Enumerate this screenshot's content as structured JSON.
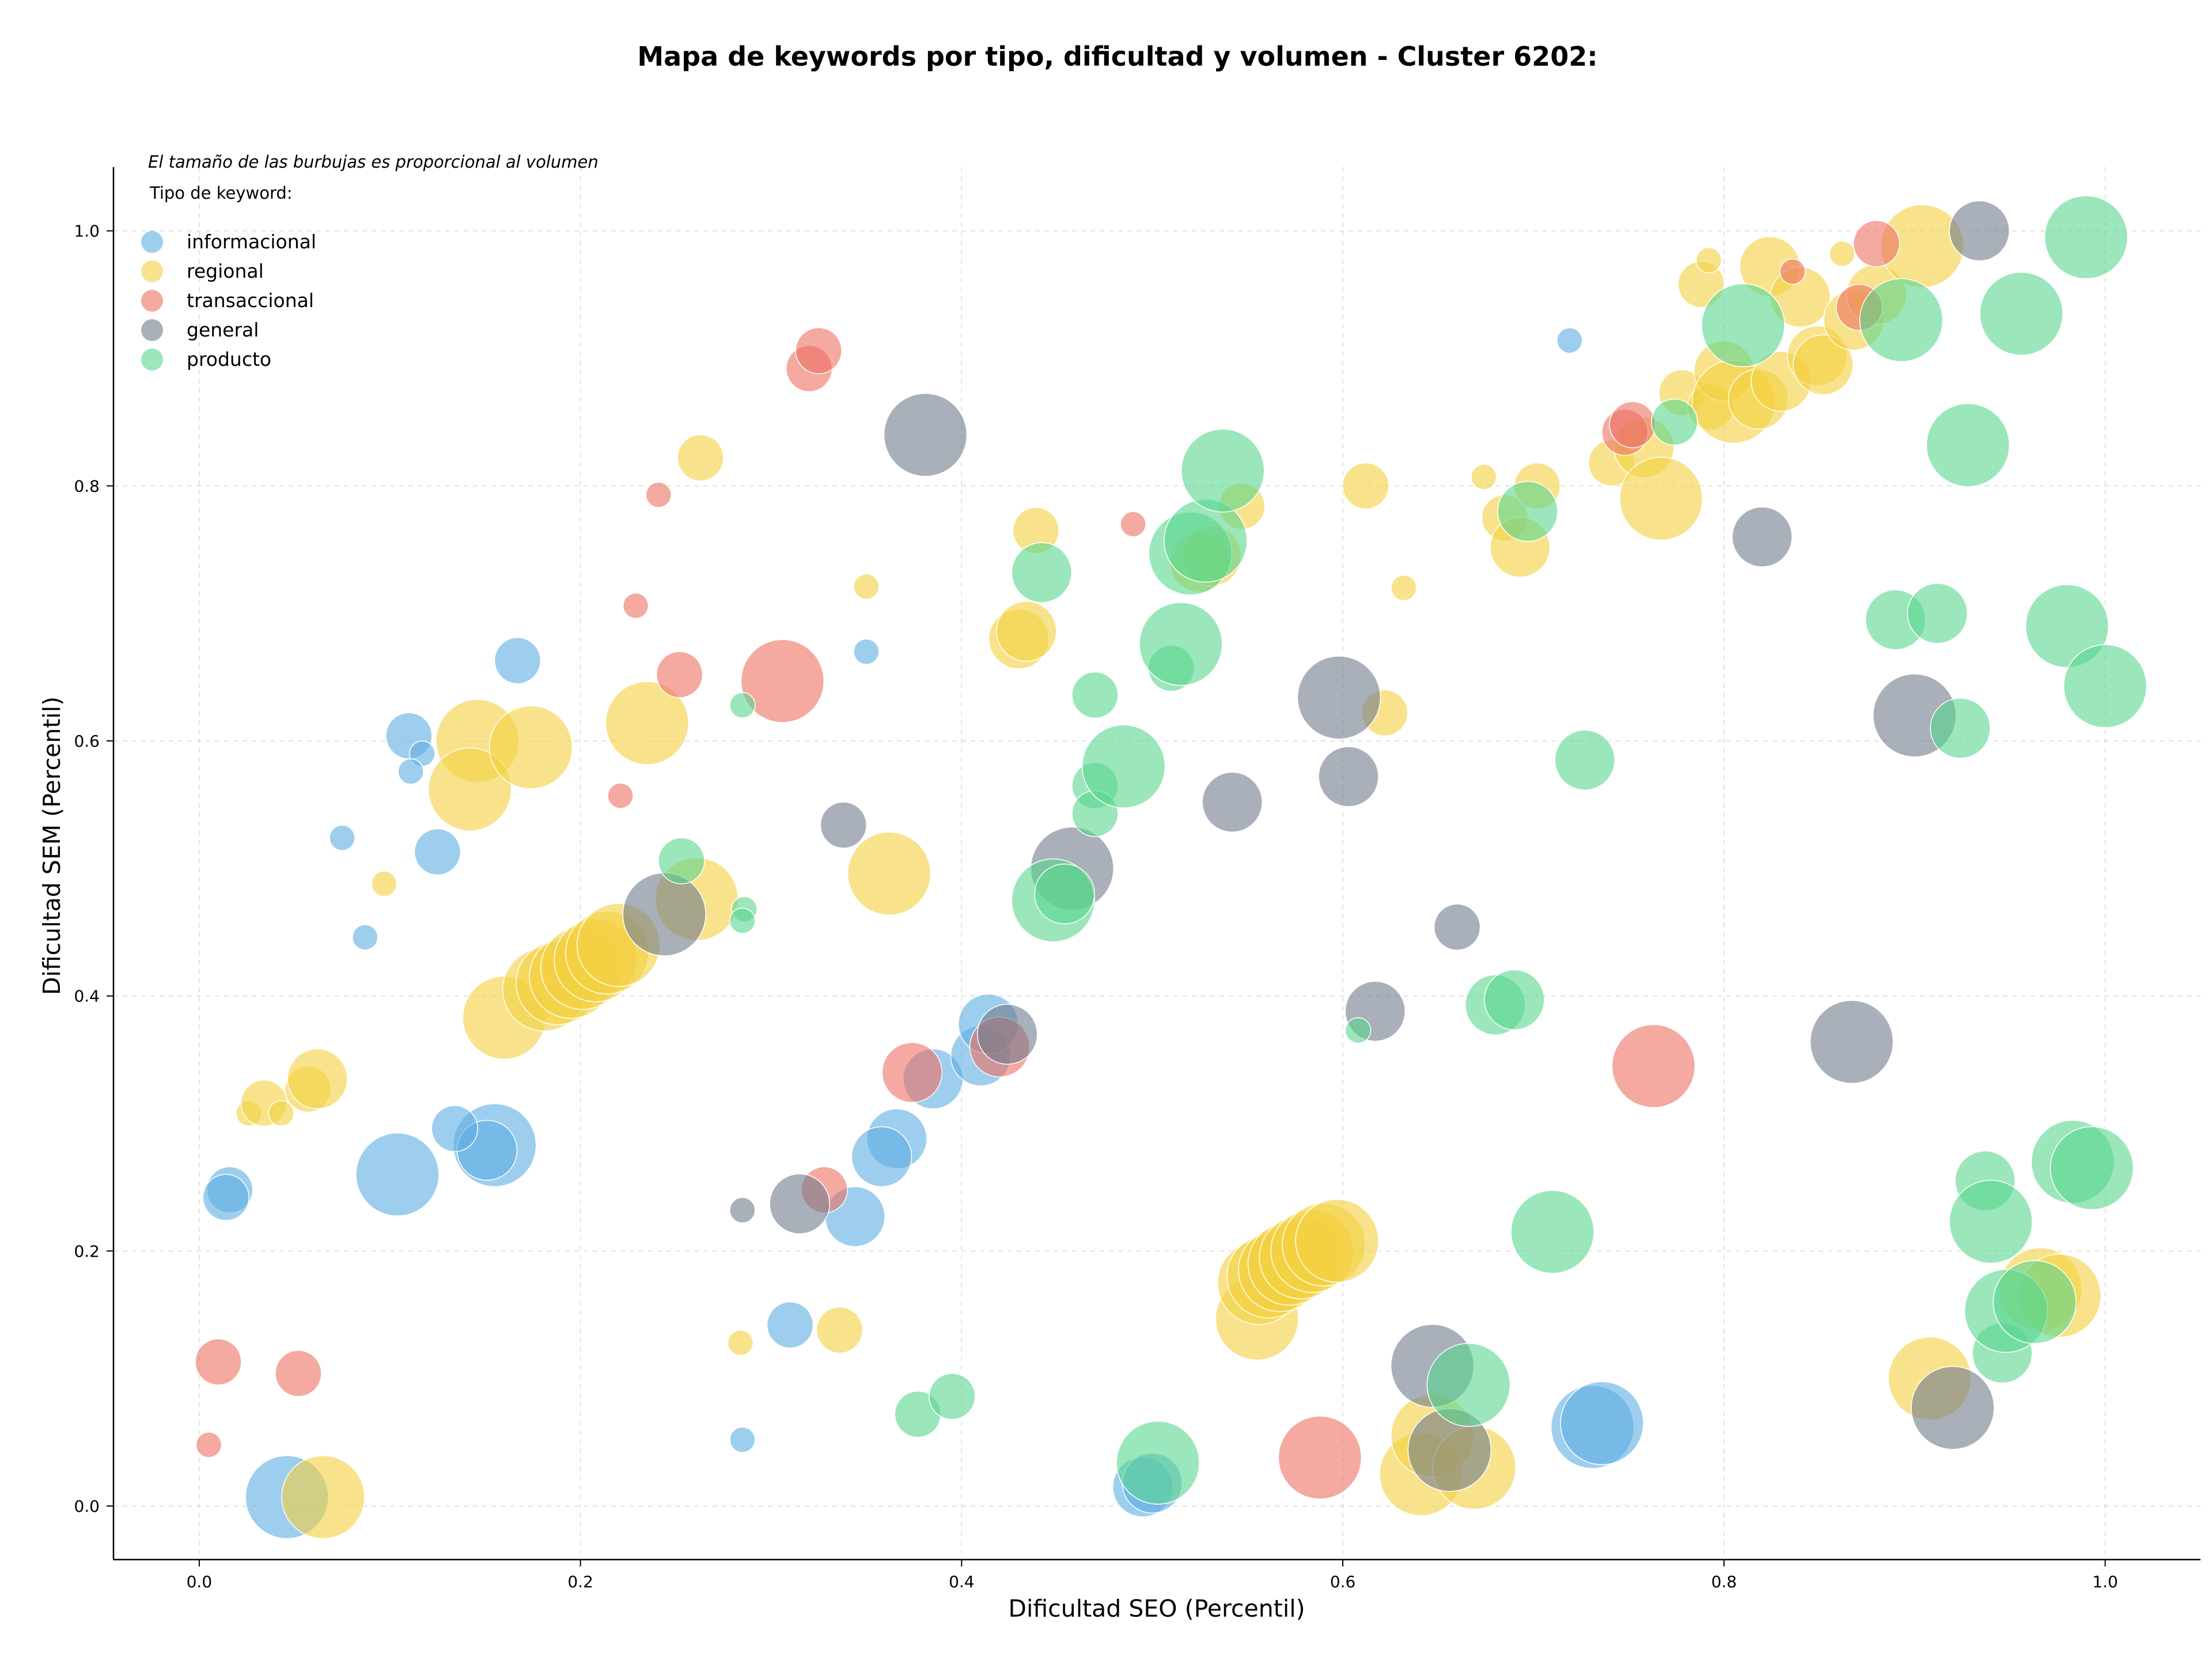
{
  "chart_data": {
    "type": "scatter",
    "title": "Mapa de keywords por tipo, dificultad y volumen - Cluster 6202:",
    "xlabel": "Dificultad SEO (Percentil)",
    "ylabel": "Dificultad SEM (Percentil)",
    "xlim": [
      -0.045,
      1.05
    ],
    "ylim": [
      -0.042,
      1.05
    ],
    "x_ticks": [
      "0.0",
      "0.2",
      "0.4",
      "0.6",
      "0.8",
      "1.0"
    ],
    "y_ticks": [
      "0.0",
      "0.2",
      "0.4",
      "0.6",
      "0.8",
      "1.0"
    ],
    "grid": true,
    "legend_note": "El tamaño de las burbujas es proporcional al volumen",
    "legend_title": "Tipo de keyword:",
    "legend_placement": "top-left",
    "series": [
      {
        "name": "informacional",
        "color": "#5dade2",
        "points": [
          {
            "x": 0.046,
            "y": 0.007,
            "s": 4
          },
          {
            "x": 0.104,
            "y": 0.26,
            "s": 4
          },
          {
            "x": 0.155,
            "y": 0.283,
            "s": 4
          },
          {
            "x": 0.151,
            "y": 0.279,
            "s": 3
          },
          {
            "x": 0.016,
            "y": 0.248,
            "s": 2
          },
          {
            "x": 0.014,
            "y": 0.242,
            "s": 2
          },
          {
            "x": 0.134,
            "y": 0.296,
            "s": 2
          },
          {
            "x": 0.11,
            "y": 0.604,
            "s": 2
          },
          {
            "x": 0.117,
            "y": 0.59,
            "s": 1
          },
          {
            "x": 0.111,
            "y": 0.576,
            "s": 1
          },
          {
            "x": 0.167,
            "y": 0.663,
            "s": 2
          },
          {
            "x": 0.075,
            "y": 0.524,
            "s": 1
          },
          {
            "x": 0.125,
            "y": 0.513,
            "s": 2
          },
          {
            "x": 0.087,
            "y": 0.446,
            "s": 1
          },
          {
            "x": 0.35,
            "y": 0.67,
            "s": 1
          },
          {
            "x": 0.385,
            "y": 0.335,
            "s": 3
          },
          {
            "x": 0.366,
            "y": 0.288,
            "s": 3
          },
          {
            "x": 0.358,
            "y": 0.274,
            "s": 3
          },
          {
            "x": 0.344,
            "y": 0.227,
            "s": 3
          },
          {
            "x": 0.41,
            "y": 0.353,
            "s": 3
          },
          {
            "x": 0.414,
            "y": 0.378,
            "s": 3
          },
          {
            "x": 0.31,
            "y": 0.142,
            "s": 2
          },
          {
            "x": 0.285,
            "y": 0.052,
            "s": 1
          },
          {
            "x": 0.719,
            "y": 0.914,
            "s": 1
          },
          {
            "x": 0.495,
            "y": 0.015,
            "s": 3
          },
          {
            "x": 0.5,
            "y": 0.018,
            "s": 3
          },
          {
            "x": 0.731,
            "y": 0.062,
            "s": 4
          },
          {
            "x": 0.736,
            "y": 0.065,
            "s": 4
          }
        ]
      },
      {
        "name": "regional",
        "color": "#f4d03f",
        "points": [
          {
            "x": 0.065,
            "y": 0.007,
            "s": 4
          },
          {
            "x": 0.026,
            "y": 0.308,
            "s": 1
          },
          {
            "x": 0.034,
            "y": 0.316,
            "s": 2
          },
          {
            "x": 0.043,
            "y": 0.308,
            "s": 1
          },
          {
            "x": 0.057,
            "y": 0.327,
            "s": 2
          },
          {
            "x": 0.062,
            "y": 0.335,
            "s": 3
          },
          {
            "x": 0.097,
            "y": 0.488,
            "s": 1
          },
          {
            "x": 0.146,
            "y": 0.6,
            "s": 4
          },
          {
            "x": 0.142,
            "y": 0.562,
            "s": 4
          },
          {
            "x": 0.174,
            "y": 0.595,
            "s": 4
          },
          {
            "x": 0.16,
            "y": 0.383,
            "s": 4
          },
          {
            "x": 0.181,
            "y": 0.405,
            "s": 4
          },
          {
            "x": 0.188,
            "y": 0.41,
            "s": 4
          },
          {
            "x": 0.195,
            "y": 0.415,
            "s": 4
          },
          {
            "x": 0.201,
            "y": 0.422,
            "s": 4
          },
          {
            "x": 0.208,
            "y": 0.428,
            "s": 4
          },
          {
            "x": 0.214,
            "y": 0.434,
            "s": 4
          },
          {
            "x": 0.22,
            "y": 0.44,
            "s": 4
          },
          {
            "x": 0.235,
            "y": 0.614,
            "s": 4
          },
          {
            "x": 0.261,
            "y": 0.476,
            "s": 4
          },
          {
            "x": 0.263,
            "y": 0.822,
            "s": 2
          },
          {
            "x": 0.362,
            "y": 0.496,
            "s": 4
          },
          {
            "x": 0.35,
            "y": 0.721,
            "s": 1
          },
          {
            "x": 0.284,
            "y": 0.128,
            "s": 1
          },
          {
            "x": 0.336,
            "y": 0.138,
            "s": 2
          },
          {
            "x": 0.43,
            "y": 0.68,
            "s": 3
          },
          {
            "x": 0.434,
            "y": 0.686,
            "s": 3
          },
          {
            "x": 0.439,
            "y": 0.765,
            "s": 2
          },
          {
            "x": 0.525,
            "y": 0.74,
            "s": 3
          },
          {
            "x": 0.531,
            "y": 0.745,
            "s": 3
          },
          {
            "x": 0.547,
            "y": 0.784,
            "s": 2
          },
          {
            "x": 0.612,
            "y": 0.8,
            "s": 2
          },
          {
            "x": 0.622,
            "y": 0.622,
            "s": 2
          },
          {
            "x": 0.632,
            "y": 0.72,
            "s": 1
          },
          {
            "x": 0.674,
            "y": 0.807,
            "s": 1
          },
          {
            "x": 0.685,
            "y": 0.775,
            "s": 2
          },
          {
            "x": 0.693,
            "y": 0.752,
            "s": 3
          },
          {
            "x": 0.702,
            "y": 0.8,
            "s": 2
          },
          {
            "x": 0.741,
            "y": 0.818,
            "s": 2
          },
          {
            "x": 0.758,
            "y": 0.83,
            "s": 3
          },
          {
            "x": 0.767,
            "y": 0.79,
            "s": 4
          },
          {
            "x": 0.778,
            "y": 0.873,
            "s": 2
          },
          {
            "x": 0.793,
            "y": 0.862,
            "s": 2
          },
          {
            "x": 0.8,
            "y": 0.89,
            "s": 3
          },
          {
            "x": 0.805,
            "y": 0.866,
            "s": 4
          },
          {
            "x": 0.818,
            "y": 0.868,
            "s": 3
          },
          {
            "x": 0.83,
            "y": 0.882,
            "s": 3
          },
          {
            "x": 0.824,
            "y": 0.972,
            "s": 3
          },
          {
            "x": 0.788,
            "y": 0.958,
            "s": 2
          },
          {
            "x": 0.792,
            "y": 0.977,
            "s": 1
          },
          {
            "x": 0.84,
            "y": 0.948,
            "s": 3
          },
          {
            "x": 0.849,
            "y": 0.902,
            "s": 3
          },
          {
            "x": 0.852,
            "y": 0.895,
            "s": 3
          },
          {
            "x": 0.862,
            "y": 0.982,
            "s": 1
          },
          {
            "x": 0.868,
            "y": 0.93,
            "s": 3
          },
          {
            "x": 0.88,
            "y": 0.95,
            "s": 3
          },
          {
            "x": 0.904,
            "y": 0.988,
            "s": 4
          },
          {
            "x": 0.555,
            "y": 0.147,
            "s": 4
          },
          {
            "x": 0.556,
            "y": 0.175,
            "s": 4
          },
          {
            "x": 0.561,
            "y": 0.18,
            "s": 4
          },
          {
            "x": 0.567,
            "y": 0.185,
            "s": 4
          },
          {
            "x": 0.572,
            "y": 0.19,
            "s": 4
          },
          {
            "x": 0.578,
            "y": 0.195,
            "s": 4
          },
          {
            "x": 0.584,
            "y": 0.2,
            "s": 4
          },
          {
            "x": 0.59,
            "y": 0.205,
            "s": 4
          },
          {
            "x": 0.597,
            "y": 0.208,
            "s": 4
          },
          {
            "x": 0.641,
            "y": 0.025,
            "s": 4
          },
          {
            "x": 0.647,
            "y": 0.055,
            "s": 4
          },
          {
            "x": 0.669,
            "y": 0.03,
            "s": 4
          },
          {
            "x": 0.908,
            "y": 0.1,
            "s": 4
          },
          {
            "x": 0.966,
            "y": 0.17,
            "s": 4
          },
          {
            "x": 0.976,
            "y": 0.165,
            "s": 4
          }
        ]
      },
      {
        "name": "transaccional",
        "color": "#ec7063",
        "points": [
          {
            "x": 0.01,
            "y": 0.113,
            "s": 2
          },
          {
            "x": 0.052,
            "y": 0.104,
            "s": 2
          },
          {
            "x": 0.005,
            "y": 0.048,
            "s": 1
          },
          {
            "x": 0.241,
            "y": 0.793,
            "s": 1
          },
          {
            "x": 0.229,
            "y": 0.706,
            "s": 1
          },
          {
            "x": 0.252,
            "y": 0.652,
            "s": 2
          },
          {
            "x": 0.221,
            "y": 0.557,
            "s": 1
          },
          {
            "x": 0.32,
            "y": 0.892,
            "s": 2
          },
          {
            "x": 0.325,
            "y": 0.906,
            "s": 2
          },
          {
            "x": 0.306,
            "y": 0.647,
            "s": 4
          },
          {
            "x": 0.328,
            "y": 0.248,
            "s": 2
          },
          {
            "x": 0.374,
            "y": 0.34,
            "s": 3
          },
          {
            "x": 0.42,
            "y": 0.36,
            "s": 3
          },
          {
            "x": 0.49,
            "y": 0.77,
            "s": 1
          },
          {
            "x": 0.588,
            "y": 0.038,
            "s": 4
          },
          {
            "x": 0.763,
            "y": 0.345,
            "s": 4
          },
          {
            "x": 0.748,
            "y": 0.842,
            "s": 2
          },
          {
            "x": 0.752,
            "y": 0.848,
            "s": 2
          },
          {
            "x": 0.836,
            "y": 0.968,
            "s": 1
          },
          {
            "x": 0.871,
            "y": 0.94,
            "s": 2
          },
          {
            "x": 0.88,
            "y": 0.99,
            "s": 2
          }
        ]
      },
      {
        "name": "general",
        "color": "#707b8a",
        "points": [
          {
            "x": 0.381,
            "y": 0.84,
            "s": 4
          },
          {
            "x": 0.244,
            "y": 0.464,
            "s": 4
          },
          {
            "x": 0.338,
            "y": 0.534,
            "s": 2
          },
          {
            "x": 0.285,
            "y": 0.232,
            "s": 1
          },
          {
            "x": 0.315,
            "y": 0.237,
            "s": 3
          },
          {
            "x": 0.424,
            "y": 0.37,
            "s": 3
          },
          {
            "x": 0.458,
            "y": 0.5,
            "s": 4
          },
          {
            "x": 0.542,
            "y": 0.552,
            "s": 3
          },
          {
            "x": 0.598,
            "y": 0.634,
            "s": 4
          },
          {
            "x": 0.603,
            "y": 0.572,
            "s": 3
          },
          {
            "x": 0.617,
            "y": 0.388,
            "s": 3
          },
          {
            "x": 0.66,
            "y": 0.454,
            "s": 2
          },
          {
            "x": 0.647,
            "y": 0.11,
            "s": 4
          },
          {
            "x": 0.656,
            "y": 0.044,
            "s": 4
          },
          {
            "x": 0.82,
            "y": 0.76,
            "s": 3
          },
          {
            "x": 0.867,
            "y": 0.364,
            "s": 4
          },
          {
            "x": 0.9,
            "y": 0.62,
            "s": 4
          },
          {
            "x": 0.92,
            "y": 0.077,
            "s": 4
          },
          {
            "x": 0.934,
            "y": 1.0,
            "s": 3
          }
        ]
      },
      {
        "name": "producto",
        "color": "#58d68d",
        "points": [
          {
            "x": 0.285,
            "y": 0.628,
            "s": 1
          },
          {
            "x": 0.253,
            "y": 0.506,
            "s": 2
          },
          {
            "x": 0.286,
            "y": 0.468,
            "s": 1
          },
          {
            "x": 0.285,
            "y": 0.459,
            "s": 1
          },
          {
            "x": 0.377,
            "y": 0.072,
            "s": 2
          },
          {
            "x": 0.395,
            "y": 0.086,
            "s": 2
          },
          {
            "x": 0.442,
            "y": 0.732,
            "s": 3
          },
          {
            "x": 0.47,
            "y": 0.636,
            "s": 2
          },
          {
            "x": 0.47,
            "y": 0.565,
            "s": 2
          },
          {
            "x": 0.47,
            "y": 0.543,
            "s": 2
          },
          {
            "x": 0.485,
            "y": 0.58,
            "s": 4
          },
          {
            "x": 0.448,
            "y": 0.475,
            "s": 4
          },
          {
            "x": 0.454,
            "y": 0.48,
            "s": 3
          },
          {
            "x": 0.503,
            "y": 0.034,
            "s": 4
          },
          {
            "x": 0.51,
            "y": 0.657,
            "s": 2
          },
          {
            "x": 0.515,
            "y": 0.676,
            "s": 4
          },
          {
            "x": 0.52,
            "y": 0.747,
            "s": 4
          },
          {
            "x": 0.528,
            "y": 0.757,
            "s": 4
          },
          {
            "x": 0.537,
            "y": 0.812,
            "s": 4
          },
          {
            "x": 0.608,
            "y": 0.373,
            "s": 1
          },
          {
            "x": 0.666,
            "y": 0.095,
            "s": 4
          },
          {
            "x": 0.68,
            "y": 0.393,
            "s": 3
          },
          {
            "x": 0.69,
            "y": 0.397,
            "s": 3
          },
          {
            "x": 0.697,
            "y": 0.78,
            "s": 3
          },
          {
            "x": 0.71,
            "y": 0.215,
            "s": 4
          },
          {
            "x": 0.727,
            "y": 0.585,
            "s": 3
          },
          {
            "x": 0.774,
            "y": 0.85,
            "s": 2
          },
          {
            "x": 0.81,
            "y": 0.926,
            "s": 4
          },
          {
            "x": 0.893,
            "y": 0.93,
            "s": 4
          },
          {
            "x": 0.89,
            "y": 0.695,
            "s": 3
          },
          {
            "x": 0.912,
            "y": 0.7,
            "s": 3
          },
          {
            "x": 0.928,
            "y": 0.832,
            "s": 4
          },
          {
            "x": 0.924,
            "y": 0.61,
            "s": 3
          },
          {
            "x": 0.937,
            "y": 0.255,
            "s": 3
          },
          {
            "x": 0.94,
            "y": 0.223,
            "s": 4
          },
          {
            "x": 0.946,
            "y": 0.12,
            "s": 3
          },
          {
            "x": 0.948,
            "y": 0.153,
            "s": 4
          },
          {
            "x": 0.956,
            "y": 0.935,
            "s": 4
          },
          {
            "x": 0.963,
            "y": 0.16,
            "s": 4
          },
          {
            "x": 0.98,
            "y": 0.69,
            "s": 4
          },
          {
            "x": 0.983,
            "y": 0.27,
            "s": 4
          },
          {
            "x": 0.99,
            "y": 0.995,
            "s": 4
          },
          {
            "x": 0.993,
            "y": 0.265,
            "s": 4
          },
          {
            "x": 1.0,
            "y": 0.643,
            "s": 4
          }
        ]
      }
    ]
  }
}
